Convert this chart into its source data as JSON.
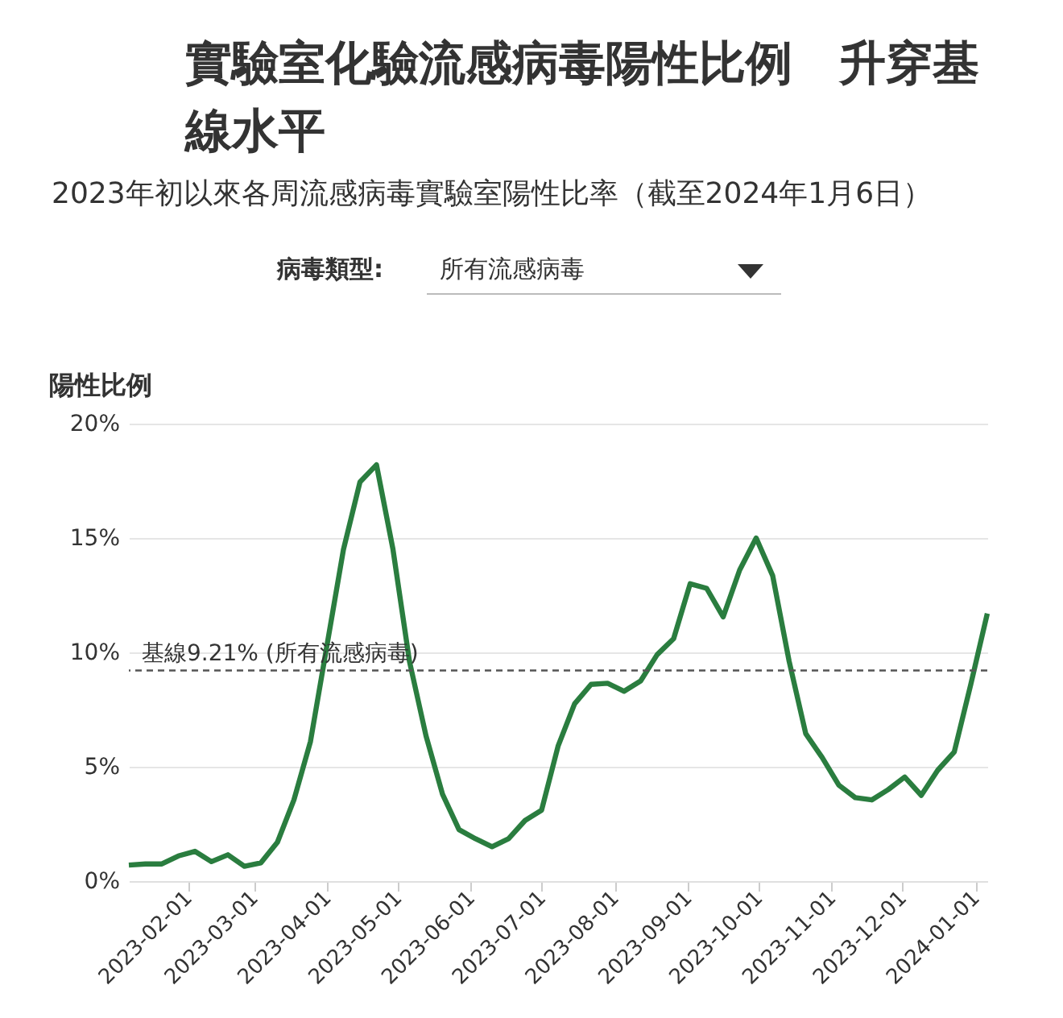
{
  "chart_data": {
    "type": "line",
    "title": "實驗室化驗流感病毒陽性比例　升穿基線水平",
    "subtitle": "2023年初以來各周流感病毒實驗室陽性比率（截至2024年1月6日）",
    "ylabel": "陽性比例",
    "annotations": [
      "病毒類型:",
      "所有流感病毒"
    ],
    "x": [
      "2023-01-07",
      "2023-01-14",
      "2023-01-21",
      "2023-01-28",
      "2023-02-04",
      "2023-02-11",
      "2023-02-18",
      "2023-02-25",
      "2023-03-04",
      "2023-03-11",
      "2023-03-18",
      "2023-03-25",
      "2023-04-01",
      "2023-04-08",
      "2023-04-15",
      "2023-04-22",
      "2023-04-29",
      "2023-05-06",
      "2023-05-13",
      "2023-05-20",
      "2023-05-27",
      "2023-06-03",
      "2023-06-10",
      "2023-06-17",
      "2023-06-24",
      "2023-07-01",
      "2023-07-08",
      "2023-07-15",
      "2023-07-22",
      "2023-07-29",
      "2023-08-05",
      "2023-08-12",
      "2023-08-19",
      "2023-08-26",
      "2023-09-02",
      "2023-09-09",
      "2023-09-16",
      "2023-09-23",
      "2023-09-30",
      "2023-10-07",
      "2023-10-14",
      "2023-10-21",
      "2023-10-28",
      "2023-11-04",
      "2023-11-11",
      "2023-11-18",
      "2023-11-25",
      "2023-12-02",
      "2023-12-09",
      "2023-12-16",
      "2023-12-23",
      "2023-12-30",
      "2024-01-06"
    ],
    "series": [
      {
        "color": "#2a7d3f",
        "values": [
          0.7,
          0.75,
          0.75,
          1.1,
          1.3,
          0.85,
          1.15,
          0.65,
          0.8,
          1.7,
          3.55,
          6.1,
          10.3,
          14.5,
          17.45,
          18.2,
          14.5,
          9.6,
          6.35,
          3.8,
          2.25,
          1.85,
          1.5,
          1.85,
          2.65,
          3.1,
          5.9,
          7.75,
          8.6,
          8.65,
          8.3,
          8.75,
          9.9,
          10.6,
          13.0,
          12.8,
          11.55,
          13.6,
          15.0,
          13.35,
          9.6,
          6.45,
          5.4,
          4.2,
          3.65,
          3.55,
          4.0,
          4.55,
          3.75,
          4.85,
          5.65,
          8.6,
          11.7
        ]
      }
    ],
    "xlim": [
      "2023-01-07",
      "2024-01-06"
    ],
    "xticks": [
      "2023-02-01",
      "2023-03-01",
      "2023-04-01",
      "2023-05-01",
      "2023-06-01",
      "2023-07-01",
      "2023-08-01",
      "2023-09-01",
      "2023-10-01",
      "2023-11-01",
      "2023-12-01",
      "2024-01-01"
    ],
    "ylim": [
      0,
      20
    ],
    "yticks": [
      {
        "value": 0,
        "label": "0%"
      },
      {
        "value": 5,
        "label": "5%"
      },
      {
        "value": 10,
        "label": "10%"
      },
      {
        "value": 15,
        "label": "15%"
      },
      {
        "value": 20,
        "label": "20%"
      }
    ],
    "ref_lines": [
      {
        "axis": "y",
        "value": 9.21,
        "label": "基線9.21% (所有流感病毒)",
        "color": "#555555",
        "line_style": "dashed"
      }
    ],
    "grid": "y",
    "marker": "none",
    "line_style": "solid"
  }
}
